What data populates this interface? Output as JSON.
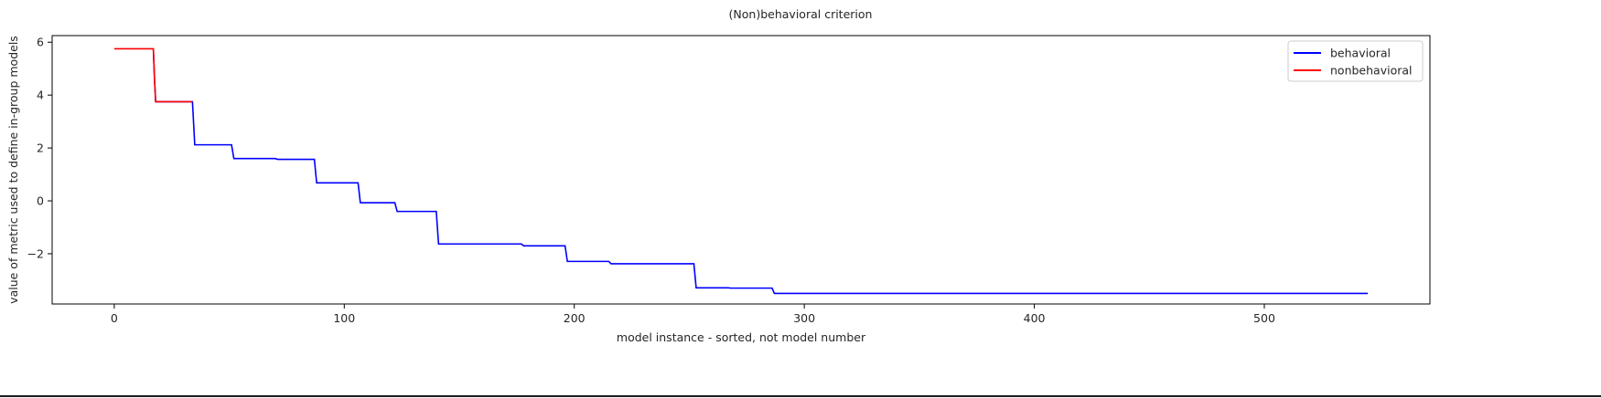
{
  "chart_data": {
    "type": "line",
    "title": "(Non)behavioral criterion",
    "xlabel": "model instance - sorted, not model number",
    "ylabel": "value of metric used to define in-group models",
    "xlim": [
      -27,
      572
    ],
    "ylim": [
      -3.9,
      6.25
    ],
    "x_ticks": [
      0,
      100,
      200,
      300,
      400,
      500
    ],
    "y_ticks": [
      -2,
      0,
      2,
      4,
      6
    ],
    "y_tick_labels": [
      "−2",
      "0",
      "2",
      "4",
      "6"
    ],
    "grid": false,
    "legend_position": "upper right",
    "colors": {
      "behavioral": "#0000ff",
      "nonbehavioral": "#ff0000"
    },
    "series": [
      {
        "name": "behavioral",
        "color": "#0000ff",
        "x": [
          17,
          17.5,
          18,
          34,
          35,
          51,
          52,
          70,
          71,
          87,
          88,
          106,
          107,
          122,
          123,
          140,
          141,
          177,
          178,
          196,
          197,
          215,
          216,
          252,
          253,
          267,
          268,
          286,
          287,
          545
        ],
        "y": [
          5.75,
          4.6,
          3.75,
          3.75,
          2.12,
          2.12,
          1.6,
          1.6,
          1.57,
          1.57,
          0.68,
          0.68,
          -0.07,
          -0.07,
          -0.4,
          -0.4,
          -1.63,
          -1.63,
          -1.7,
          -1.7,
          -2.29,
          -2.29,
          -2.38,
          -2.38,
          -3.29,
          -3.29,
          -3.3,
          -3.3,
          -3.5,
          -3.5
        ]
      },
      {
        "name": "nonbehavioral",
        "color": "#ff0000",
        "x": [
          0,
          17,
          17.5,
          18,
          34
        ],
        "y": [
          5.75,
          5.75,
          4.6,
          3.75,
          3.75
        ]
      }
    ]
  }
}
